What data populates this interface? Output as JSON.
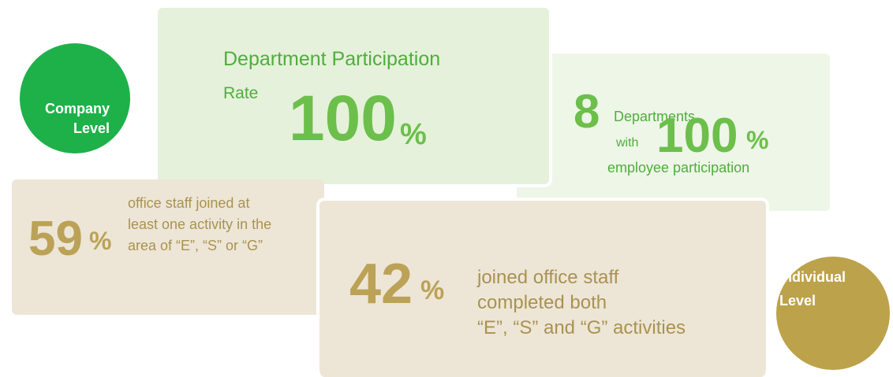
{
  "company_level": {
    "label_lines": [
      "Company",
      "Level"
    ]
  },
  "participation_rate": {
    "title_lines": [
      "Department Participation",
      "Rate"
    ],
    "number": "100",
    "unit": "%"
  },
  "departments": {
    "number": "8",
    "label": "Departments",
    "connector": "with",
    "percent": "100",
    "unit": "%",
    "caption": "employee participation"
  },
  "office_staff_joined": {
    "number": "59",
    "unit": "%",
    "text_lines": [
      "office staff joined at",
      "least one activity in the",
      "area of “E”, “S” or “G”"
    ]
  },
  "completed_both": {
    "number": "42",
    "unit": "%",
    "text_lines": [
      "joined office staff",
      "completed both",
      "“E”, “S” and “G” activities"
    ]
  },
  "individual_level": {
    "label_lines": [
      "Individual",
      "Level"
    ]
  }
}
